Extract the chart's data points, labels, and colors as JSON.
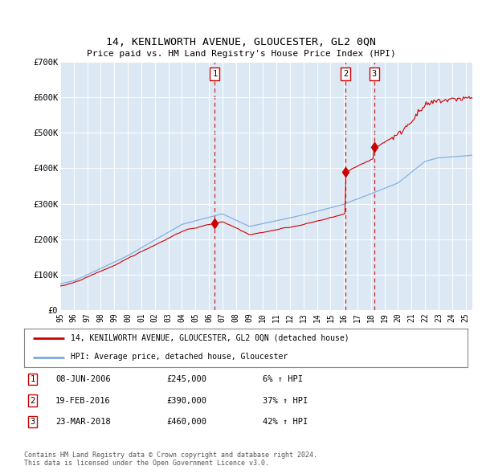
{
  "title": "14, KENILWORTH AVENUE, GLOUCESTER, GL2 0QN",
  "subtitle": "Price paid vs. HM Land Registry's House Price Index (HPI)",
  "plot_bg_color": "#dce9f5",
  "ylim": [
    0,
    700000
  ],
  "xlim_start": 1995.0,
  "xlim_end": 2025.5,
  "yticks": [
    0,
    100000,
    200000,
    300000,
    400000,
    500000,
    600000,
    700000
  ],
  "ytick_labels": [
    "£0",
    "£100K",
    "£200K",
    "£300K",
    "£400K",
    "£500K",
    "£600K",
    "£700K"
  ],
  "transactions": [
    {
      "num": 1,
      "date": "08-JUN-2006",
      "price": 245000,
      "year": 2006.44,
      "pct": "6%"
    },
    {
      "num": 2,
      "date": "19-FEB-2016",
      "price": 390000,
      "year": 2016.13,
      "pct": "37%"
    },
    {
      "num": 3,
      "date": "23-MAR-2018",
      "price": 460000,
      "year": 2018.22,
      "pct": "42%"
    }
  ],
  "legend_label_red": "14, KENILWORTH AVENUE, GLOUCESTER, GL2 0QN (detached house)",
  "legend_label_blue": "HPI: Average price, detached house, Gloucester",
  "footer1": "Contains HM Land Registry data © Crown copyright and database right 2024.",
  "footer2": "This data is licensed under the Open Government Licence v3.0.",
  "red_color": "#cc0000",
  "blue_color": "#7aaadd",
  "marker_color": "#cc0000"
}
